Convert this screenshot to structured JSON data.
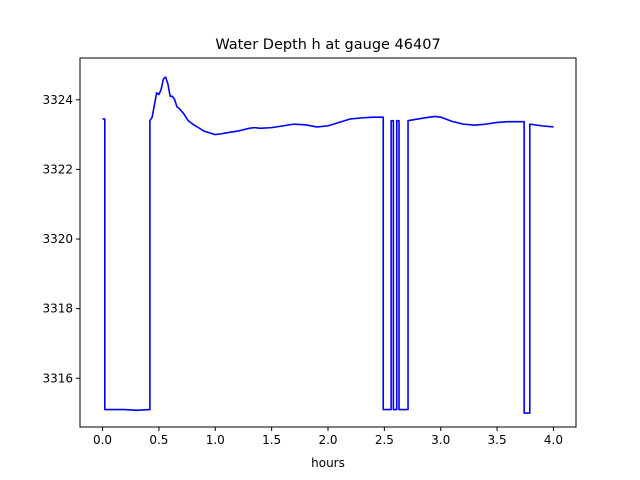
{
  "chart_data": {
    "type": "line",
    "title": "Water Depth h at gauge 46407",
    "xlabel": "hours",
    "ylabel": "",
    "xlim": [
      -0.2,
      4.2
    ],
    "ylim": [
      3314.6,
      3325.2
    ],
    "xticks": [
      0.0,
      0.5,
      1.0,
      1.5,
      2.0,
      2.5,
      3.0,
      3.5,
      4.0
    ],
    "xtick_labels": [
      "0.0",
      "0.5",
      "1.0",
      "1.5",
      "2.0",
      "2.5",
      "3.0",
      "3.5",
      "4.0"
    ],
    "yticks": [
      3316,
      3318,
      3320,
      3322,
      3324
    ],
    "ytick_labels": [
      "3316",
      "3318",
      "3320",
      "3322",
      "3324"
    ],
    "grid": false,
    "series": [
      {
        "color": "#0000ff",
        "x": [
          0.0,
          0.02,
          0.02,
          0.1,
          0.2,
          0.3,
          0.41,
          0.42,
          0.42,
          0.44,
          0.48,
          0.5,
          0.52,
          0.54,
          0.56,
          0.58,
          0.6,
          0.62,
          0.64,
          0.66,
          0.68,
          0.72,
          0.76,
          0.8,
          0.85,
          0.9,
          0.95,
          1.0,
          1.05,
          1.1,
          1.2,
          1.3,
          1.35,
          1.4,
          1.5,
          1.6,
          1.7,
          1.8,
          1.9,
          2.0,
          2.1,
          2.2,
          2.3,
          2.4,
          2.48,
          2.49,
          2.49,
          2.55,
          2.56,
          2.56,
          2.57,
          2.58,
          2.58,
          2.6,
          2.61,
          2.61,
          2.62,
          2.63,
          2.63,
          2.7,
          2.71,
          2.71,
          2.8,
          2.9,
          2.95,
          3.0,
          3.1,
          3.2,
          3.3,
          3.4,
          3.5,
          3.6,
          3.7,
          3.73,
          3.74,
          3.74,
          3.78,
          3.79,
          3.79,
          3.9,
          4.0
        ],
        "y": [
          3323.45,
          3323.45,
          3315.1,
          3315.1,
          3315.1,
          3315.08,
          3315.1,
          3315.1,
          3323.4,
          3323.5,
          3324.2,
          3324.15,
          3324.3,
          3324.6,
          3324.65,
          3324.45,
          3324.1,
          3324.1,
          3324.0,
          3323.8,
          3323.75,
          3323.6,
          3323.4,
          3323.3,
          3323.2,
          3323.1,
          3323.05,
          3323.0,
          3323.02,
          3323.05,
          3323.1,
          3323.18,
          3323.2,
          3323.18,
          3323.2,
          3323.25,
          3323.3,
          3323.28,
          3323.22,
          3323.25,
          3323.35,
          3323.45,
          3323.48,
          3323.5,
          3323.5,
          3323.5,
          3315.1,
          3315.1,
          3315.1,
          3323.4,
          3323.4,
          3323.4,
          3315.1,
          3315.1,
          3315.1,
          3323.4,
          3323.4,
          3323.4,
          3315.1,
          3315.1,
          3315.1,
          3323.4,
          3323.45,
          3323.5,
          3323.52,
          3323.5,
          3323.38,
          3323.3,
          3323.27,
          3323.3,
          3323.35,
          3323.37,
          3323.37,
          3323.37,
          3323.37,
          3315.0,
          3315.0,
          3315.0,
          3323.3,
          3323.25,
          3323.22
        ]
      }
    ]
  }
}
